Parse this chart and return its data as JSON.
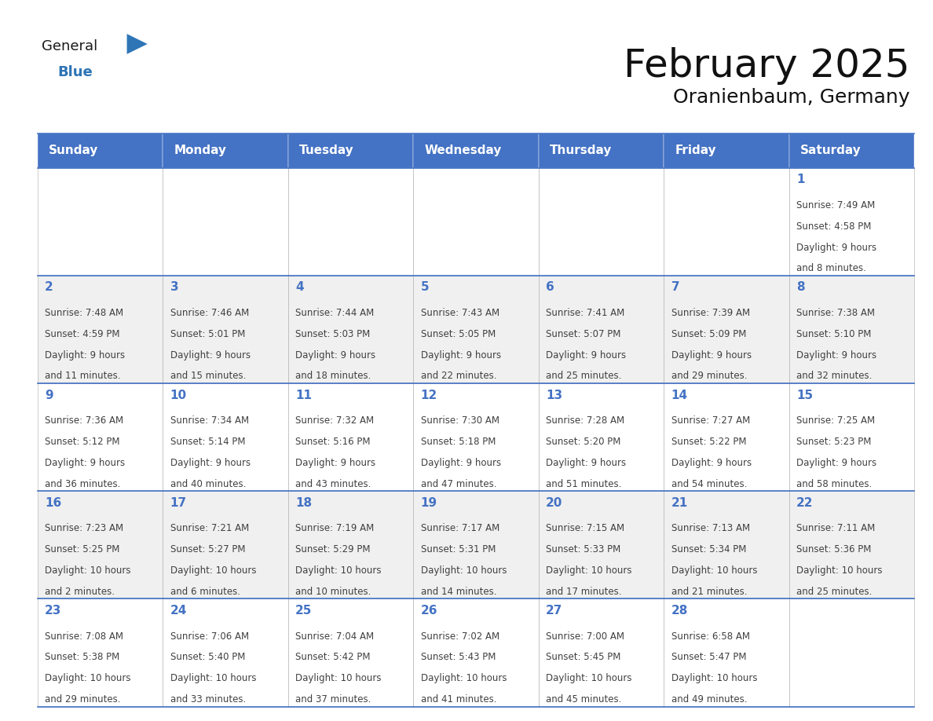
{
  "title": "February 2025",
  "subtitle": "Oranienbaum, Germany",
  "header_color": "#4472C4",
  "header_text_color": "#FFFFFF",
  "header_days": [
    "Sunday",
    "Monday",
    "Tuesday",
    "Wednesday",
    "Thursday",
    "Friday",
    "Saturday"
  ],
  "cell_bg_color": "#FFFFFF",
  "cell_bg_alt": "#F0F0F0",
  "day_number_color": "#4472C4",
  "text_color": "#404040",
  "border_color": "#AAAAAA",
  "row_line_color": "#4472C4",
  "days": [
    {
      "day": 1,
      "col": 6,
      "row": 0,
      "sunrise": "7:49 AM",
      "sunset": "4:58 PM",
      "daylight": "9 hours and 8 minutes"
    },
    {
      "day": 2,
      "col": 0,
      "row": 1,
      "sunrise": "7:48 AM",
      "sunset": "4:59 PM",
      "daylight": "9 hours and 11 minutes"
    },
    {
      "day": 3,
      "col": 1,
      "row": 1,
      "sunrise": "7:46 AM",
      "sunset": "5:01 PM",
      "daylight": "9 hours and 15 minutes"
    },
    {
      "day": 4,
      "col": 2,
      "row": 1,
      "sunrise": "7:44 AM",
      "sunset": "5:03 PM",
      "daylight": "9 hours and 18 minutes"
    },
    {
      "day": 5,
      "col": 3,
      "row": 1,
      "sunrise": "7:43 AM",
      "sunset": "5:05 PM",
      "daylight": "9 hours and 22 minutes"
    },
    {
      "day": 6,
      "col": 4,
      "row": 1,
      "sunrise": "7:41 AM",
      "sunset": "5:07 PM",
      "daylight": "9 hours and 25 minutes"
    },
    {
      "day": 7,
      "col": 5,
      "row": 1,
      "sunrise": "7:39 AM",
      "sunset": "5:09 PM",
      "daylight": "9 hours and 29 minutes"
    },
    {
      "day": 8,
      "col": 6,
      "row": 1,
      "sunrise": "7:38 AM",
      "sunset": "5:10 PM",
      "daylight": "9 hours and 32 minutes"
    },
    {
      "day": 9,
      "col": 0,
      "row": 2,
      "sunrise": "7:36 AM",
      "sunset": "5:12 PM",
      "daylight": "9 hours and 36 minutes"
    },
    {
      "day": 10,
      "col": 1,
      "row": 2,
      "sunrise": "7:34 AM",
      "sunset": "5:14 PM",
      "daylight": "9 hours and 40 minutes"
    },
    {
      "day": 11,
      "col": 2,
      "row": 2,
      "sunrise": "7:32 AM",
      "sunset": "5:16 PM",
      "daylight": "9 hours and 43 minutes"
    },
    {
      "day": 12,
      "col": 3,
      "row": 2,
      "sunrise": "7:30 AM",
      "sunset": "5:18 PM",
      "daylight": "9 hours and 47 minutes"
    },
    {
      "day": 13,
      "col": 4,
      "row": 2,
      "sunrise": "7:28 AM",
      "sunset": "5:20 PM",
      "daylight": "9 hours and 51 minutes"
    },
    {
      "day": 14,
      "col": 5,
      "row": 2,
      "sunrise": "7:27 AM",
      "sunset": "5:22 PM",
      "daylight": "9 hours and 54 minutes"
    },
    {
      "day": 15,
      "col": 6,
      "row": 2,
      "sunrise": "7:25 AM",
      "sunset": "5:23 PM",
      "daylight": "9 hours and 58 minutes"
    },
    {
      "day": 16,
      "col": 0,
      "row": 3,
      "sunrise": "7:23 AM",
      "sunset": "5:25 PM",
      "daylight": "10 hours and 2 minutes"
    },
    {
      "day": 17,
      "col": 1,
      "row": 3,
      "sunrise": "7:21 AM",
      "sunset": "5:27 PM",
      "daylight": "10 hours and 6 minutes"
    },
    {
      "day": 18,
      "col": 2,
      "row": 3,
      "sunrise": "7:19 AM",
      "sunset": "5:29 PM",
      "daylight": "10 hours and 10 minutes"
    },
    {
      "day": 19,
      "col": 3,
      "row": 3,
      "sunrise": "7:17 AM",
      "sunset": "5:31 PM",
      "daylight": "10 hours and 14 minutes"
    },
    {
      "day": 20,
      "col": 4,
      "row": 3,
      "sunrise": "7:15 AM",
      "sunset": "5:33 PM",
      "daylight": "10 hours and 17 minutes"
    },
    {
      "day": 21,
      "col": 5,
      "row": 3,
      "sunrise": "7:13 AM",
      "sunset": "5:34 PM",
      "daylight": "10 hours and 21 minutes"
    },
    {
      "day": 22,
      "col": 6,
      "row": 3,
      "sunrise": "7:11 AM",
      "sunset": "5:36 PM",
      "daylight": "10 hours and 25 minutes"
    },
    {
      "day": 23,
      "col": 0,
      "row": 4,
      "sunrise": "7:08 AM",
      "sunset": "5:38 PM",
      "daylight": "10 hours and 29 minutes"
    },
    {
      "day": 24,
      "col": 1,
      "row": 4,
      "sunrise": "7:06 AM",
      "sunset": "5:40 PM",
      "daylight": "10 hours and 33 minutes"
    },
    {
      "day": 25,
      "col": 2,
      "row": 4,
      "sunrise": "7:04 AM",
      "sunset": "5:42 PM",
      "daylight": "10 hours and 37 minutes"
    },
    {
      "day": 26,
      "col": 3,
      "row": 4,
      "sunrise": "7:02 AM",
      "sunset": "5:43 PM",
      "daylight": "10 hours and 41 minutes"
    },
    {
      "day": 27,
      "col": 4,
      "row": 4,
      "sunrise": "7:00 AM",
      "sunset": "5:45 PM",
      "daylight": "10 hours and 45 minutes"
    },
    {
      "day": 28,
      "col": 5,
      "row": 4,
      "sunrise": "6:58 AM",
      "sunset": "5:47 PM",
      "daylight": "10 hours and 49 minutes"
    }
  ],
  "num_rows": 5,
  "num_cols": 7,
  "logo_color_general": "#1a1a1a",
  "logo_color_blue": "#2E75B6",
  "logo_triangle_color": "#2E75B6",
  "title_fontsize": 36,
  "subtitle_fontsize": 18,
  "header_fontsize": 11,
  "daynum_fontsize": 11,
  "cell_fontsize": 8.5
}
